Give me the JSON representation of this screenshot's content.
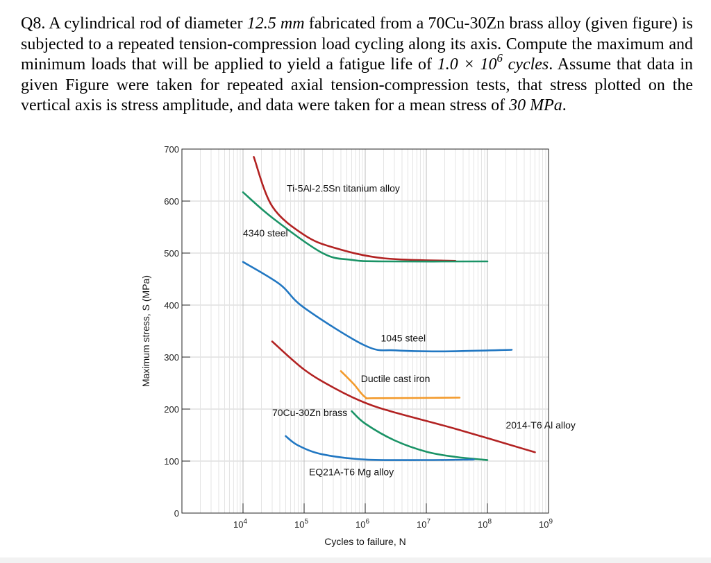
{
  "question": {
    "number": "Q8.",
    "parts": [
      {
        "t": " A cylindrical rod of diameter "
      },
      {
        "t": "12.5 mm",
        "it": true
      },
      {
        "t": " fabricated from a 70Cu-30Zn brass alloy (given figure) is subjected to a repeated tension-compression load cycling along its axis. Compute the maximum and minimum loads that will be applied to yield a fatigue life of "
      },
      {
        "t": "1.0 × 10",
        "it": true
      },
      {
        "t": "6",
        "it": true,
        "sup": true
      },
      {
        "t": " cycles",
        "it": true
      },
      {
        "t": ". Assume that data in given Figure were taken for repeated axial tension-compression tests, that stress plotted on the vertical axis is stress amplitude, and data were taken for a mean stress of "
      },
      {
        "t": "30 MPa",
        "it": true
      },
      {
        "t": "."
      }
    ]
  },
  "chart_data": {
    "type": "line",
    "xscale": "log",
    "xlim": [
      1000,
      1000000000
    ],
    "ylim": [
      0,
      700
    ],
    "grid": true,
    "xlabel": "Cycles to failure, N",
    "ylabel": "Maximum stress, S (MPa)",
    "x_ticks": [
      {
        "value": 10000,
        "base": "10",
        "exp": "4"
      },
      {
        "value": 100000,
        "base": "10",
        "exp": "5"
      },
      {
        "value": 1000000,
        "base": "10",
        "exp": "6"
      },
      {
        "value": 10000000,
        "base": "10",
        "exp": "7"
      },
      {
        "value": 100000000,
        "base": "10",
        "exp": "8"
      },
      {
        "value": 1000000000,
        "base": "10",
        "exp": "9"
      }
    ],
    "y_ticks": [
      0,
      100,
      200,
      300,
      400,
      500,
      600,
      700
    ],
    "colors": {
      "red": "#b22222",
      "green": "#1a9366",
      "blue": "#2177c2",
      "orange": "#f39a2b"
    },
    "series": [
      {
        "name": "Ti-5Al-2.5Sn titanium alloy",
        "color": "#b22222",
        "points": [
          [
            15000,
            685
          ],
          [
            30000,
            590
          ],
          [
            100000,
            535
          ],
          [
            316000,
            510
          ],
          [
            2000000,
            490
          ],
          [
            30000000,
            485
          ]
        ],
        "label_at": [
          52000,
          618
        ]
      },
      {
        "name": "4340 steel",
        "color": "#1a9366",
        "points": [
          [
            10000,
            617
          ],
          [
            31600,
            566
          ],
          [
            200000,
            500
          ],
          [
            600000,
            487
          ],
          [
            2000000,
            484
          ],
          [
            100000000,
            484
          ]
        ],
        "label_at": [
          10000,
          532
        ]
      },
      {
        "name": "1045 steel",
        "color": "#2177c2",
        "points": [
          [
            10000,
            483
          ],
          [
            40000,
            440
          ],
          [
            100000,
            395
          ],
          [
            1000000,
            322
          ],
          [
            3160000,
            313
          ],
          [
            20000000,
            311
          ],
          [
            250000000,
            314
          ]
        ],
        "label_at": [
          1800000,
          330
        ]
      },
      {
        "name": "Ductile cast iron",
        "color": "#f39a2b",
        "points": [
          [
            400000,
            273
          ],
          [
            650000,
            248
          ],
          [
            1000000,
            223
          ],
          [
            1500000,
            221
          ],
          [
            35000000,
            222
          ]
        ],
        "label_at": [
          850000,
          252
        ]
      },
      {
        "name": "2014-T6 Al alloy",
        "color": "#b22222",
        "points": [
          [
            30000,
            330
          ],
          [
            100000,
            276
          ],
          [
            316000,
            240
          ],
          [
            1000000,
            212
          ],
          [
            3160000,
            193
          ],
          [
            30000000,
            162
          ],
          [
            600000000,
            117
          ]
        ],
        "label_at": [
          200000000,
          163
        ]
      },
      {
        "name": "70Cu-30Zn brass",
        "color": "#1a9366",
        "points": [
          [
            600000,
            196
          ],
          [
            1000000,
            172
          ],
          [
            3000000,
            140
          ],
          [
            10000000,
            118
          ],
          [
            30000000,
            108
          ],
          [
            100000000,
            102
          ]
        ],
        "label_at": [
          30000,
          187
        ]
      },
      {
        "name": "EQ21A-T6 Mg alloy",
        "color": "#2177c2",
        "points": [
          [
            50000,
            148
          ],
          [
            80000,
            130
          ],
          [
            200000,
            113
          ],
          [
            1000000,
            103
          ],
          [
            10000000,
            102
          ],
          [
            60000000,
            103
          ]
        ],
        "label_at": [
          120000,
          73
        ]
      }
    ]
  }
}
